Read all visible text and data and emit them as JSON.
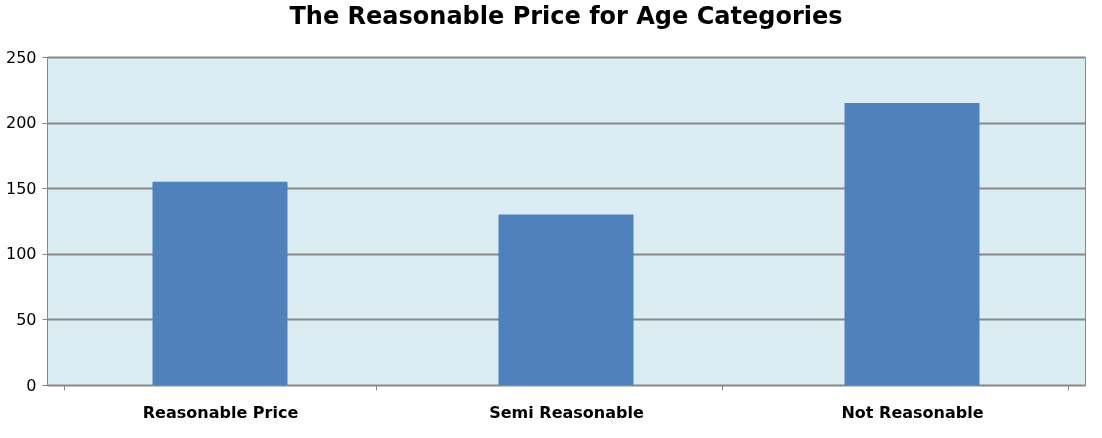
{
  "chart_data": {
    "type": "bar",
    "title": "The Reasonable Price for Age Categories",
    "categories": [
      "Reasonable Price",
      "Semi Reasonable",
      "Not Reasonable"
    ],
    "values": [
      155,
      130,
      215
    ],
    "color": "#4f81bd",
    "ylim": [
      0,
      250
    ],
    "yticks": [
      0,
      50,
      100,
      150,
      200,
      250
    ],
    "grid": "y"
  }
}
